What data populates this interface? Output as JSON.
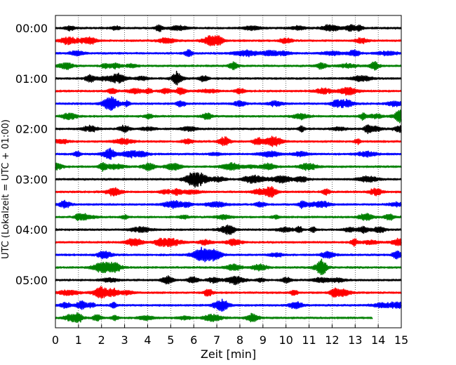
{
  "chart_data": {
    "type": "line",
    "subtype": "seismogram-helicorder",
    "title": "",
    "xlabel": "Zeit  [min]",
    "ylabel": "UTC (Lokalzeit = UTC + 01:00)",
    "xlim": [
      0,
      15
    ],
    "x_ticks": [
      "0",
      "1",
      "2",
      "3",
      "4",
      "5",
      "6",
      "7",
      "8",
      "9",
      "10",
      "11",
      "12",
      "13",
      "14",
      "15"
    ],
    "y_tick_labels": [
      "00:00",
      "01:00",
      "02:00",
      "03:00",
      "04:00",
      "05:00"
    ],
    "minutes_per_line": 15,
    "line_colors_cycle": [
      "#000000",
      "#ff0000",
      "#0000ff",
      "#008000"
    ],
    "vertical_grid": "dotted",
    "series": [
      {
        "start": "00:00",
        "end_min": 15,
        "color": "#000000"
      },
      {
        "start": "00:15",
        "end_min": 15,
        "color": "#ff0000"
      },
      {
        "start": "00:30",
        "end_min": 15,
        "color": "#0000ff"
      },
      {
        "start": "00:45",
        "end_min": 15,
        "color": "#008000"
      },
      {
        "start": "01:00",
        "end_min": 15,
        "color": "#000000"
      },
      {
        "start": "01:15",
        "end_min": 15,
        "color": "#ff0000"
      },
      {
        "start": "01:30",
        "end_min": 15,
        "color": "#0000ff"
      },
      {
        "start": "01:45",
        "end_min": 15,
        "color": "#008000"
      },
      {
        "start": "02:00",
        "end_min": 15,
        "color": "#000000"
      },
      {
        "start": "02:15",
        "end_min": 15,
        "color": "#ff0000"
      },
      {
        "start": "02:30",
        "end_min": 15,
        "color": "#0000ff"
      },
      {
        "start": "02:45",
        "end_min": 15,
        "color": "#008000"
      },
      {
        "start": "03:00",
        "end_min": 15,
        "color": "#000000"
      },
      {
        "start": "03:15",
        "end_min": 15,
        "color": "#ff0000"
      },
      {
        "start": "03:30",
        "end_min": 15,
        "color": "#0000ff"
      },
      {
        "start": "03:45",
        "end_min": 15,
        "color": "#008000"
      },
      {
        "start": "04:00",
        "end_min": 15,
        "color": "#000000"
      },
      {
        "start": "04:15",
        "end_min": 15,
        "color": "#ff0000"
      },
      {
        "start": "04:30",
        "end_min": 15,
        "color": "#0000ff"
      },
      {
        "start": "04:45",
        "end_min": 15,
        "color": "#008000"
      },
      {
        "start": "05:00",
        "end_min": 15,
        "color": "#000000"
      },
      {
        "start": "05:15",
        "end_min": 15,
        "color": "#ff0000"
      },
      {
        "start": "05:30",
        "end_min": 15,
        "color": "#0000ff"
      },
      {
        "start": "05:45",
        "end_min": 13.75,
        "color": "#008000"
      }
    ]
  }
}
